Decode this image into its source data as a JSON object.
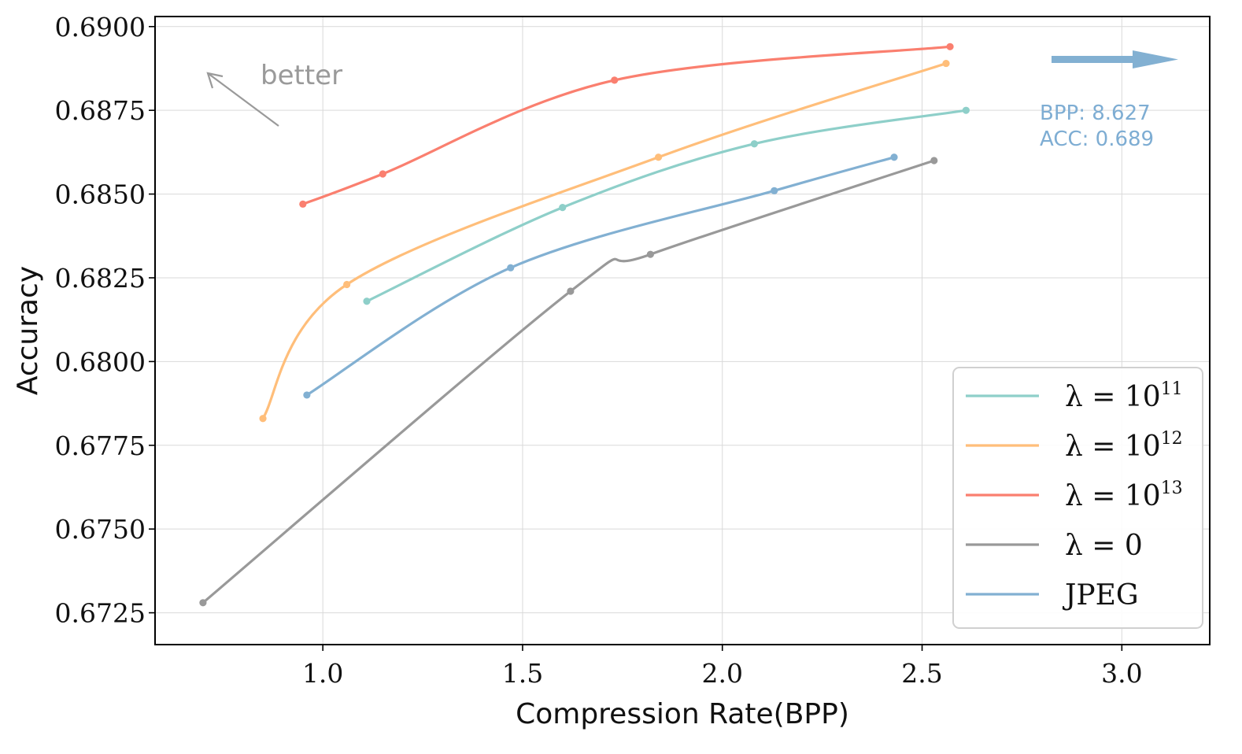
{
  "chart_data": {
    "type": "line",
    "title": "",
    "xlabel": "Compression Rate(BPP)",
    "ylabel": "Accuracy",
    "xlim": [
      0.58,
      3.22
    ],
    "ylim": [
      0.67155,
      0.6903
    ],
    "xticks": [
      1.0,
      1.5,
      2.0,
      2.5,
      3.0
    ],
    "xtick_labels": [
      "1.0",
      "1.5",
      "2.0",
      "2.5",
      "3.0"
    ],
    "yticks": [
      0.6725,
      0.675,
      0.6775,
      0.68,
      0.6825,
      0.685,
      0.6875,
      0.69
    ],
    "ytick_labels": [
      "0.6725",
      "0.6750",
      "0.6775",
      "0.6800",
      "0.6825",
      "0.6850",
      "0.6875",
      "0.6900"
    ],
    "grid": true,
    "legend_position": "lower-right",
    "series": [
      {
        "name": "λ = 10^11",
        "label_base": "λ = 10",
        "label_sup": "11",
        "color": "#8ecfc9",
        "x": [
          1.11,
          1.6,
          2.08,
          2.61
        ],
        "y": [
          0.6818,
          0.6846,
          0.6865,
          0.6875
        ]
      },
      {
        "name": "λ = 10^12",
        "label_base": "λ = 10",
        "label_sup": "12",
        "color": "#ffbe7a",
        "x": [
          0.85,
          1.06,
          1.84,
          2.56
        ],
        "y": [
          0.6783,
          0.6823,
          0.6861,
          0.6889
        ]
      },
      {
        "name": "λ = 10^13",
        "label_base": "λ = 10",
        "label_sup": "13",
        "color": "#fa7f6f",
        "x": [
          0.95,
          1.15,
          1.73,
          2.57
        ],
        "y": [
          0.6847,
          0.6856,
          0.6884,
          0.6894
        ]
      },
      {
        "name": "λ = 0",
        "label_base": "λ = 0",
        "label_sup": "",
        "color": "#999999",
        "x": [
          0.7,
          1.62,
          1.82,
          2.53
        ],
        "y": [
          0.6728,
          0.6821,
          0.6832,
          0.686
        ]
      },
      {
        "name": "JPEG",
        "label_base": "JPEG",
        "label_sup": "",
        "color": "#82b0d2",
        "x": [
          0.96,
          1.47,
          2.13,
          2.43
        ],
        "y": [
          0.679,
          0.6828,
          0.6851,
          0.6861
        ]
      }
    ],
    "annotations": {
      "better_label": "better",
      "better_color": "#9a9a9a",
      "outlier_bpp": "BPP: 8.627",
      "outlier_acc": "ACC: 0.689",
      "outlier_color": "#7eadd3"
    }
  }
}
